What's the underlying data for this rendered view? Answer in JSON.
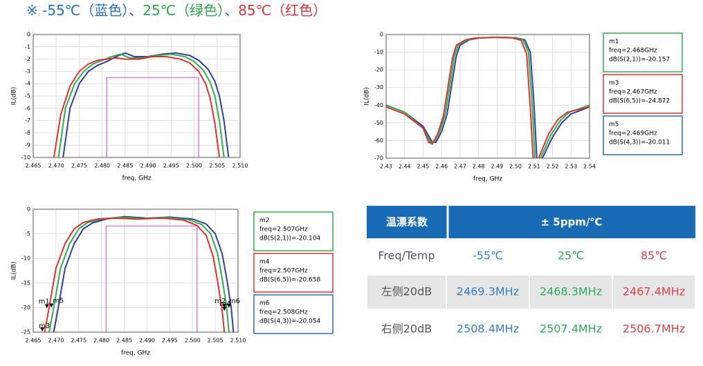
{
  "header": {
    "parts": [
      {
        "text": "※ ",
        "color": "#1f6fc0"
      },
      {
        "text": "-55℃（蓝色）",
        "color": "#1f6fc0"
      },
      {
        "text": "、",
        "color": "#1f6fc0"
      },
      {
        "text": "25℃（绿色）",
        "color": "#2aa84a"
      },
      {
        "text": "、",
        "color": "#1f6fc0"
      },
      {
        "text": "85℃（红色）",
        "color": "#e0303a"
      }
    ]
  },
  "chart_data": [
    {
      "type": "line",
      "xlabel": "freq, GHz",
      "ylabel": "IL(dB)",
      "grid": true,
      "xlim": [
        2.465,
        2.51
      ],
      "xticks": [
        2.465,
        {
          "value": 2.47,
          "label": "2.470"
        },
        2.475,
        {
          "value": 2.48,
          "label": "2.480"
        },
        2.485,
        {
          "value": 2.49,
          "label": "2.490"
        },
        2.495,
        {
          "value": 2.5,
          "label": "2.500"
        },
        2.505,
        {
          "value": 2.51,
          "label": "2.510"
        }
      ],
      "ylim": [
        -10,
        0
      ],
      "yticks": [
        0,
        -1,
        -2,
        -3,
        -4,
        -5,
        -6,
        -7,
        -8,
        -9,
        -10
      ],
      "mask": {
        "x": [
          2.481,
          2.501
        ],
        "y": -3.5,
        "color": "#cc66cc"
      },
      "series": [
        {
          "name": "-55℃",
          "color": "#2b3f9e",
          "x": [
            2.4715,
            2.473,
            2.475,
            2.477,
            2.479,
            2.481,
            2.483,
            2.485,
            2.487,
            2.49,
            2.493,
            2.496,
            2.499,
            2.501,
            2.503,
            2.5045,
            2.5055,
            2.5065,
            2.5075
          ],
          "values": [
            -10,
            -6,
            -4,
            -3,
            -2.5,
            -2.2,
            -1.8,
            -1.5,
            -1.8,
            -1.8,
            -1.6,
            -1.5,
            -1.7,
            -2.1,
            -2.8,
            -3.8,
            -5,
            -7,
            -10
          ]
        },
        {
          "name": "25℃",
          "color": "#2fae4a",
          "x": [
            2.4705,
            2.472,
            2.474,
            2.476,
            2.478,
            2.48,
            2.482,
            2.484,
            2.486,
            2.489,
            2.492,
            2.495,
            2.498,
            2.5,
            2.502,
            2.5035,
            2.5045,
            2.5055,
            2.5065
          ],
          "values": [
            -10,
            -6,
            -4,
            -3,
            -2.4,
            -2.1,
            -1.8,
            -1.6,
            -1.9,
            -1.9,
            -1.7,
            -1.6,
            -1.8,
            -2.2,
            -2.9,
            -3.9,
            -5,
            -7,
            -10
          ]
        },
        {
          "name": "85℃",
          "color": "#e03030",
          "x": [
            2.4695,
            2.471,
            2.473,
            2.475,
            2.477,
            2.479,
            2.481,
            2.483,
            2.485,
            2.488,
            2.491,
            2.494,
            2.497,
            2.499,
            2.501,
            2.5025,
            2.5035,
            2.5045,
            2.5055
          ],
          "values": [
            -10,
            -6.5,
            -4.2,
            -3,
            -2.4,
            -2.1,
            -2,
            -1.9,
            -2,
            -2,
            -1.8,
            -1.8,
            -2,
            -2.3,
            -3,
            -4,
            -5.2,
            -7.2,
            -10
          ]
        }
      ]
    },
    {
      "type": "line",
      "xlabel": "freq, GHz",
      "ylabel": "IL(dB)",
      "grid": true,
      "xlim": [
        2.43,
        2.54
      ],
      "xticks": [
        2.43,
        2.44,
        2.45,
        2.46,
        2.47,
        2.48,
        2.49,
        {
          "value": 2.5,
          "label": "2.50"
        },
        2.51,
        2.52,
        2.53,
        2.54
      ],
      "ylim": [
        -70,
        0
      ],
      "yticks": [
        0,
        -10,
        -20,
        -30,
        -40,
        -50,
        -60,
        -70
      ],
      "series": [
        {
          "name": "-55℃",
          "color": "#2b3f9e",
          "x": [
            2.43,
            2.44,
            2.45,
            2.455,
            2.457,
            2.46,
            2.463,
            2.466,
            2.468,
            2.47,
            2.475,
            2.48,
            2.49,
            2.5,
            2.505,
            2.508,
            2.51,
            2.5115,
            2.513,
            2.5145,
            2.52,
            2.525,
            2.53,
            2.54
          ],
          "values": [
            -40,
            -44,
            -52,
            -61,
            -61,
            -55,
            -45,
            -25,
            -12,
            -6,
            -3,
            -2,
            -1.5,
            -1.8,
            -3,
            -10,
            -40,
            -70,
            null,
            -70,
            -58,
            -50,
            -45,
            -41
          ]
        },
        {
          "name": "25℃",
          "color": "#2fae4a",
          "x": [
            2.43,
            2.44,
            2.45,
            2.454,
            2.456,
            2.459,
            2.462,
            2.465,
            2.467,
            2.469,
            2.474,
            2.479,
            2.489,
            2.499,
            2.504,
            2.507,
            2.509,
            2.5105,
            2.512,
            2.5135,
            2.519,
            2.524,
            2.529,
            2.54
          ],
          "values": [
            -40,
            -44,
            -53,
            -61,
            -61,
            -55,
            -45,
            -25,
            -12,
            -6,
            -3,
            -2,
            -1.5,
            -1.8,
            -3,
            -10,
            -40,
            -70,
            null,
            -70,
            -57,
            -49,
            -44,
            -40
          ]
        },
        {
          "name": "85℃",
          "color": "#e03030",
          "x": [
            2.43,
            2.44,
            2.45,
            2.453,
            2.455,
            2.458,
            2.461,
            2.464,
            2.466,
            2.468,
            2.473,
            2.478,
            2.488,
            2.498,
            2.503,
            2.506,
            2.508,
            2.5095,
            2.511,
            2.5125,
            2.518,
            2.523,
            2.528,
            2.54
          ],
          "values": [
            -41,
            -45,
            -53,
            -61,
            -62,
            -56,
            -46,
            -26,
            -13,
            -6,
            -3,
            -2,
            -1.6,
            -1.9,
            -3.2,
            -11,
            -42,
            -70,
            null,
            -70,
            -56,
            -48,
            -44,
            -41
          ]
        }
      ],
      "readouts": [
        {
          "name": "m1",
          "freq": "freq=2.468GHz",
          "db": "dB(S(2,1))=-20.157",
          "color": "#2fae4a"
        },
        {
          "name": "m3",
          "freq": "freq=2.467GHz",
          "db": "dB(S(6,5))=-24.872",
          "color": "#e03030"
        },
        {
          "name": "m5",
          "freq": "freq=2.469GHz",
          "db": "dB(S(4,3))=-20.011",
          "color": "#2b6cb0"
        }
      ]
    },
    {
      "type": "line",
      "xlabel": "freq, GHz",
      "ylabel": "IL(dB)",
      "grid": true,
      "xlim": [
        2.465,
        2.51
      ],
      "xticks": [
        2.465,
        {
          "value": 2.47,
          "label": "2.470"
        },
        2.475,
        {
          "value": 2.48,
          "label": "2.480"
        },
        2.485,
        {
          "value": 2.49,
          "label": "2.490"
        },
        2.495,
        {
          "value": 2.5,
          "label": "2.500"
        },
        2.505,
        {
          "value": 2.51,
          "label": "2.510"
        }
      ],
      "ylim": [
        -25,
        0
      ],
      "yticks": [
        0,
        -5,
        -10,
        -15,
        -20,
        -25
      ],
      "mask": {
        "x": [
          2.481,
          2.501
        ],
        "y": -3.4,
        "color": "#cc66cc"
      },
      "series": [
        {
          "name": "-55℃",
          "color": "#2b3f9e",
          "x": [
            2.4695,
            2.4705,
            2.472,
            2.474,
            2.476,
            2.478,
            2.481,
            2.485,
            2.49,
            2.495,
            2.5,
            2.503,
            2.505,
            2.5065,
            2.5075,
            2.5085,
            2.509
          ],
          "values": [
            -25,
            -20,
            -12,
            -7,
            -4,
            -2.8,
            -2,
            -1.5,
            -1.8,
            -1.6,
            -2,
            -3,
            -5,
            -9,
            -14,
            -20,
            -25
          ]
        },
        {
          "name": "25℃",
          "color": "#2fae4a",
          "x": [
            2.4685,
            2.4695,
            2.471,
            2.473,
            2.475,
            2.477,
            2.48,
            2.484,
            2.489,
            2.494,
            2.499,
            2.502,
            2.504,
            2.5055,
            2.5065,
            2.5075,
            2.508
          ],
          "values": [
            -25,
            -20,
            -12,
            -7,
            -4,
            -2.7,
            -2,
            -1.6,
            -1.9,
            -1.7,
            -2.1,
            -3.1,
            -5,
            -9,
            -14,
            -20,
            -25
          ]
        },
        {
          "name": "85℃",
          "color": "#e03030",
          "x": [
            2.4675,
            2.4685,
            2.47,
            2.472,
            2.474,
            2.476,
            2.479,
            2.483,
            2.488,
            2.493,
            2.498,
            2.501,
            2.503,
            2.5045,
            2.5055,
            2.5065,
            2.507
          ],
          "values": [
            -25,
            -20,
            -12,
            -7,
            -4,
            -2.7,
            -2,
            -1.8,
            -2,
            -1.8,
            -2.2,
            -3.3,
            -5.3,
            -9.5,
            -14.5,
            -20.5,
            -25
          ]
        }
      ],
      "markers": [
        {
          "name": "m1",
          "x": 2.468,
          "y": -20.157
        },
        {
          "name": "m3",
          "x": 2.467,
          "y": -24.872
        },
        {
          "name": "m5",
          "x": 2.469,
          "y": -20.011
        },
        {
          "name": "m2",
          "x": 2.507,
          "y": -20.104
        },
        {
          "name": "m4",
          "x": 2.507,
          "y": -20.658
        },
        {
          "name": "m6",
          "x": 2.508,
          "y": -20.054
        }
      ],
      "readouts": [
        {
          "name": "m2",
          "freq": "freq=2.507GHz",
          "db": "dB(S(2,1))=-20.104",
          "color": "#2fae4a"
        },
        {
          "name": "m4",
          "freq": "freq=2.507GHz",
          "db": "dB(S(6,5))=-20.658",
          "color": "#e03030"
        },
        {
          "name": "m6",
          "freq": "freq=2.508GHz",
          "db": "dB(S(4,3))=-20.054",
          "color": "#2b6cb0"
        }
      ]
    }
  ],
  "table": {
    "header": [
      "温漂系数",
      "± 5ppm/℃"
    ],
    "column_colors": [
      "#555555",
      "#3b7dc4",
      "#2eaa5a",
      "#e0404a"
    ],
    "rows": [
      [
        "Freq/Temp",
        "-55℃",
        "25℃",
        "85℃"
      ],
      [
        "左侧20dB",
        "2469.3MHz",
        "2468.3MHz",
        "2467.4MHz"
      ],
      [
        "右侧20dB",
        "2508.4MHz",
        "2507.4MHz",
        "2506.7MHz"
      ]
    ]
  }
}
